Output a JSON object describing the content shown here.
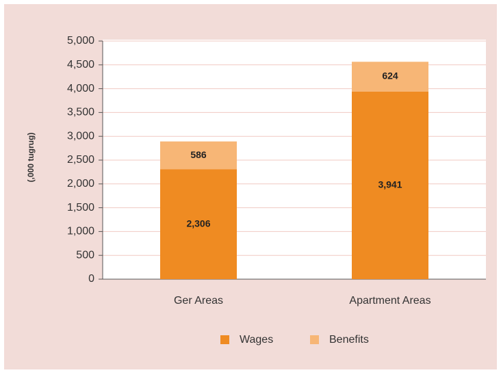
{
  "chart_data": {
    "type": "stacked_bar",
    "y_axis_label": "(,000 tugrug)",
    "categories": [
      "Ger Areas",
      "Apartment Areas"
    ],
    "series": [
      {
        "name": "Wages",
        "color": "#ef8b22",
        "values": [
          2306,
          3941
        ],
        "value_labels": [
          "2,306",
          "3,941"
        ]
      },
      {
        "name": "Benefits",
        "color": "#f7b676",
        "values": [
          586,
          624
        ]
      }
    ],
    "ylim": [
      0,
      5000
    ],
    "yticks": [
      0,
      500,
      {
        "value": 1000,
        "label": "1,000"
      },
      {
        "value": 1500,
        "label": "1,500"
      },
      {
        "value": 2000,
        "label": "2,000"
      },
      {
        "value": 2500,
        "label": "2,500"
      },
      {
        "value": 3000,
        "label": "3,000"
      },
      {
        "value": 3500,
        "label": "3,500"
      },
      {
        "value": 4000,
        "label": "4,000"
      },
      {
        "value": 4500,
        "label": "4,500"
      },
      {
        "value": 5000,
        "label": "5,000"
      }
    ],
    "grid": true,
    "legend": "bottom"
  }
}
